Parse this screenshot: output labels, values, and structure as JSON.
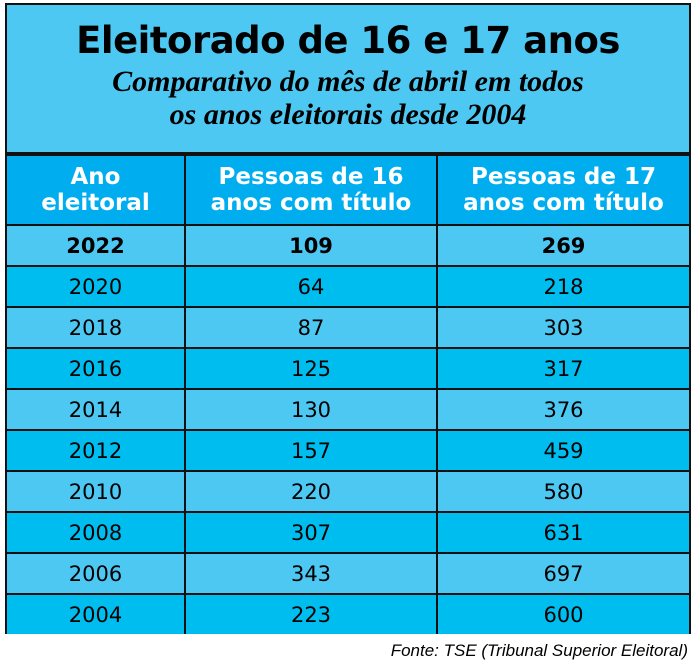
{
  "title": "Eleitorado de 16 e 17 anos",
  "subtitle_line1": "Comparativo do mês de abril em todos",
  "subtitle_line2": "os anos eleitorais desde 2004",
  "source": "Fonte: TSE (Tribunal Superior Eleitoral)",
  "colors": {
    "title_bg": "#4dc8f2",
    "header_bg": "#00aeef",
    "row_light": "#4dc8f2",
    "row_dark": "#00bdf0"
  },
  "chart_data": {
    "type": "table",
    "title": "Eleitorado de 16 e 17 anos",
    "columns": [
      {
        "line1": "Ano",
        "line2": "eleitoral"
      },
      {
        "line1": "Pessoas de 16",
        "line2": "anos com título"
      },
      {
        "line1": "Pessoas de 17",
        "line2": "anos com título"
      }
    ],
    "rows": [
      [
        "2022",
        "109",
        "269"
      ],
      [
        "2020",
        "64",
        "218"
      ],
      [
        "2018",
        "87",
        "303"
      ],
      [
        "2016",
        "125",
        "317"
      ],
      [
        "2014",
        "130",
        "376"
      ],
      [
        "2012",
        "157",
        "459"
      ],
      [
        "2010",
        "220",
        "580"
      ],
      [
        "2008",
        "307",
        "631"
      ],
      [
        "2006",
        "343",
        "697"
      ],
      [
        "2004",
        "223",
        "600"
      ]
    ]
  }
}
